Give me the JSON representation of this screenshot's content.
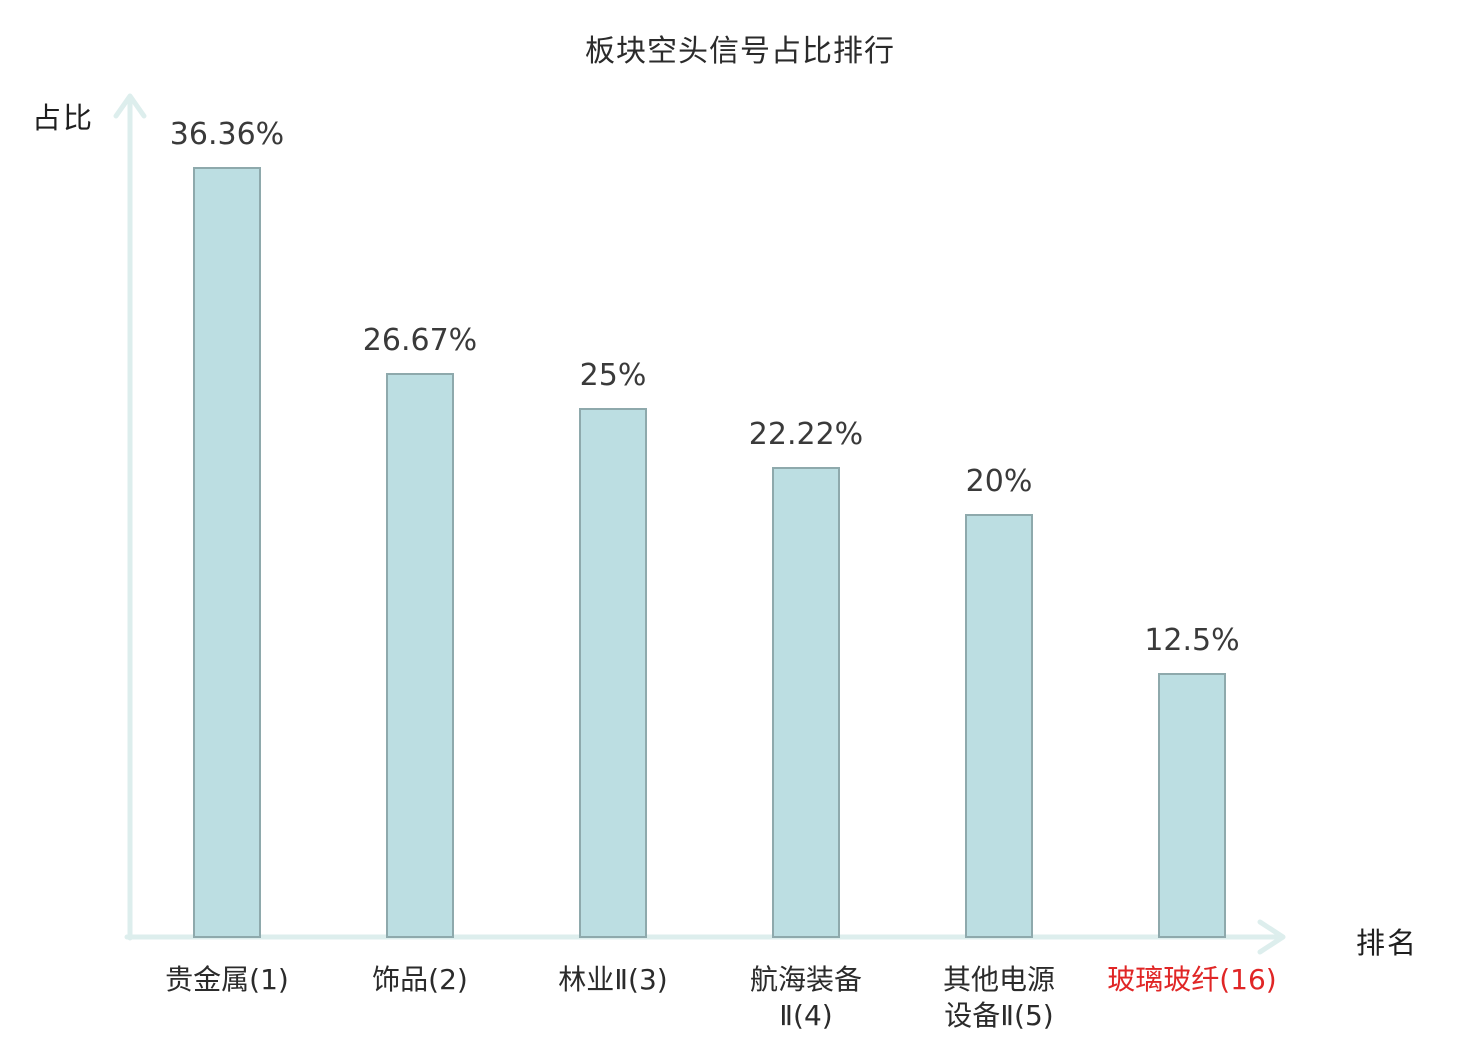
{
  "chart_data": {
    "type": "bar",
    "title": "板块空头信号占比排行",
    "xlabel": "排名",
    "ylabel": "占比",
    "categories": [
      "贵金属(1)",
      "饰品(2)",
      "林业Ⅱ(3)",
      "航海装备\nⅡ(4)",
      "其他电源\n设备Ⅱ(5)",
      "玻璃玻纤(16)"
    ],
    "values": [
      36.36,
      26.67,
      25,
      22.22,
      20,
      12.5
    ],
    "value_labels": [
      "36.36%",
      "26.67%",
      "25%",
      "22.22%",
      "20%",
      "12.5%"
    ],
    "category_colors": [
      "#2b2b2b",
      "#2b2b2b",
      "#2b2b2b",
      "#2b2b2b",
      "#2b2b2b",
      "#e02626"
    ],
    "highlight_index": 5,
    "highlight_color": "#e02626",
    "bar_fill": "#bcdee2",
    "bar_border": "#8ea9ac",
    "axis_color": "#ddeeed",
    "text_color": "#2b2b2b",
    "value_label_color": "#3a3a3a",
    "ylim": [
      0,
      40
    ],
    "grid": false,
    "legend": null
  }
}
